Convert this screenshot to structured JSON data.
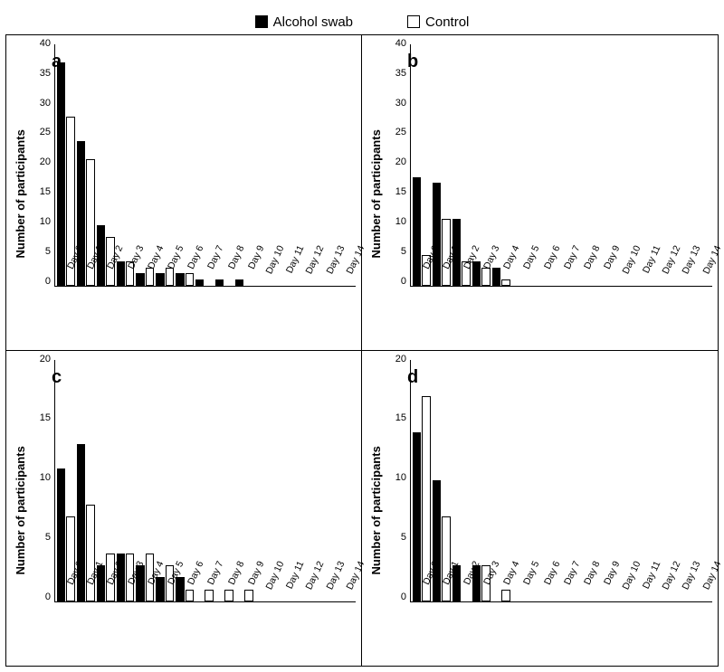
{
  "legend": {
    "series1": {
      "label": "Alcohol swab",
      "color": "#000000",
      "fill": "solid"
    },
    "series2": {
      "label": "Control",
      "color": "#000000",
      "fill": "hollow"
    }
  },
  "axes": {
    "y_label": "Number of participants",
    "x_categories": [
      "Day 0",
      "Day 1",
      "Day 2",
      "Day 3",
      "Day 4",
      "Day 5",
      "Day 6",
      "Day 7",
      "Day 8",
      "Day 9",
      "Day 10",
      "Day 11",
      "Day 12",
      "Day 13",
      "Day 14"
    ]
  },
  "styling": {
    "background_color": "#ffffff",
    "axis_color": "#000000",
    "font_family": "Arial",
    "label_fontsize_pt": 10,
    "panel_label_fontsize_pt": 18,
    "panel_label_fontweight": "bold",
    "bar_border_color": "#000000",
    "series1_fill": "#000000",
    "series2_fill": "#ffffff",
    "panel_border": "1px solid #000000",
    "x_tick_rotation_deg": -65
  },
  "panels": {
    "a": {
      "label": "a",
      "ylim": [
        0,
        40
      ],
      "ytick_step": 5,
      "type": "bar",
      "alcohol": [
        37,
        24,
        10,
        4,
        2,
        2,
        2,
        1,
        1,
        1,
        0,
        0,
        0,
        0,
        0
      ],
      "control": [
        28,
        21,
        8,
        4,
        3,
        3,
        2,
        0,
        0,
        0,
        0,
        0,
        0,
        0,
        0
      ]
    },
    "b": {
      "label": "b",
      "ylim": [
        0,
        40
      ],
      "ytick_step": 5,
      "type": "bar",
      "alcohol": [
        18,
        17,
        11,
        4,
        3,
        0,
        0,
        0,
        0,
        0,
        0,
        0,
        0,
        0,
        0
      ],
      "control": [
        5,
        11,
        4,
        3,
        1,
        0,
        0,
        0,
        0,
        0,
        0,
        0,
        0,
        0,
        0
      ]
    },
    "c": {
      "label": "c",
      "ylim": [
        0,
        20
      ],
      "ytick_step": 5,
      "type": "bar",
      "alcohol": [
        11,
        13,
        3,
        4,
        3,
        2,
        2,
        0,
        0,
        0,
        0,
        0,
        0,
        0,
        0
      ],
      "control": [
        7,
        8,
        4,
        4,
        4,
        3,
        1,
        1,
        1,
        1,
        0,
        0,
        0,
        0,
        0
      ]
    },
    "d": {
      "label": "d",
      "ylim": [
        0,
        20
      ],
      "ytick_step": 5,
      "type": "bar",
      "alcohol": [
        14,
        10,
        3,
        3,
        0,
        0,
        0,
        0,
        0,
        0,
        0,
        0,
        0,
        0,
        0
      ],
      "control": [
        17,
        7,
        0,
        3,
        1,
        0,
        0,
        0,
        0,
        0,
        0,
        0,
        0,
        0,
        0
      ]
    }
  }
}
